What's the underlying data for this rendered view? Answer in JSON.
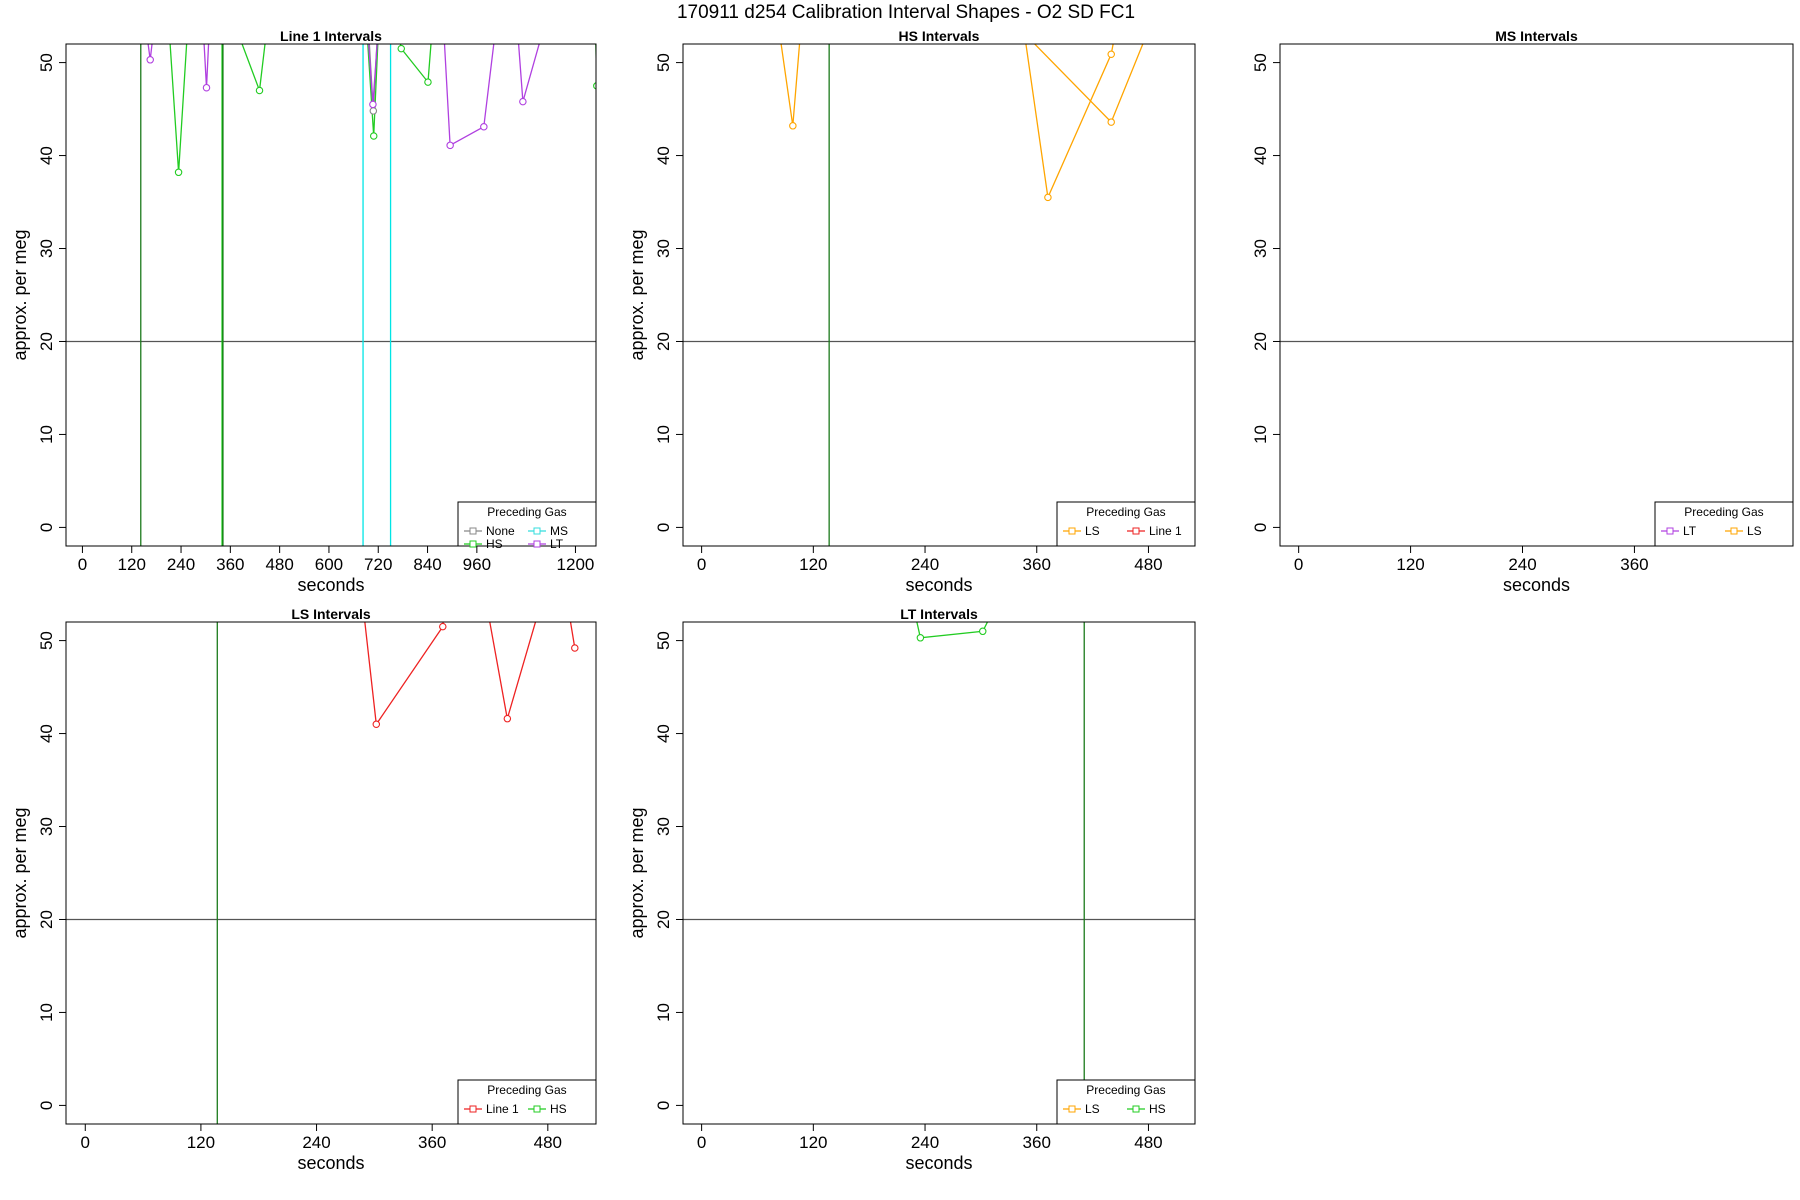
{
  "title": "170911    d254   Calibration Interval Shapes - O2 SD FC1",
  "chart_data": [
    {
      "type": "line",
      "title": "Line 1 Intervals",
      "xlabel": "seconds",
      "ylabel": "approx. per meg",
      "xlim": [
        -40,
        1250
      ],
      "ylim": [
        -2,
        52
      ],
      "xticks": [
        0,
        120,
        240,
        360,
        480,
        600,
        720,
        840,
        960,
        1200
      ],
      "yticks": [
        0,
        10,
        20,
        30,
        40,
        50
      ],
      "hlines": [
        {
          "y": 20,
          "color": "#555555"
        }
      ],
      "vlines": [
        {
          "x": 142,
          "color": "#1b7a1b"
        },
        {
          "x": 340,
          "color": "#00cc00"
        },
        {
          "x": 342,
          "color": "#1b7a1b"
        },
        {
          "x": 683,
          "color": "#00e5e5"
        },
        {
          "x": 750,
          "color": "#00e5e5"
        }
      ],
      "legend": {
        "title": "Preceding Gas",
        "position": "bottom-right",
        "columns": 2,
        "entries": [
          {
            "label": "None",
            "color": "#888888"
          },
          {
            "label": "MS",
            "color": "#33dddd"
          },
          {
            "label": "HS",
            "color": "#22cc22"
          },
          {
            "label": "LT",
            "color": "#b040e0"
          }
        ]
      },
      "series": [
        {
          "name": "LT",
          "color": "#b040e0",
          "points": [
            [
              157,
              53
            ],
            [
              165,
              50.3
            ],
            [
              172,
              53
            ]
          ]
        },
        {
          "name": "LT",
          "color": "#b040e0",
          "points": [
            [
              295,
              53
            ],
            [
              302,
              47.3
            ],
            [
              308,
              53
            ]
          ]
        },
        {
          "name": "HS",
          "color": "#22cc22",
          "points": [
            [
              212,
              53
            ],
            [
              234,
              38.2
            ],
            [
              255,
              53
            ]
          ]
        },
        {
          "name": "HS",
          "color": "#22cc22",
          "points": [
            [
              380,
              53
            ],
            [
              431,
              47
            ],
            [
              447,
              53
            ]
          ]
        },
        {
          "name": "HS",
          "color": "#22cc22",
          "points": [
            [
              693,
              53
            ],
            [
              709,
              42.1
            ],
            [
              720,
              53
            ]
          ]
        },
        {
          "name": "None",
          "color": "#888888",
          "points": [
            [
              697,
              53
            ],
            [
              708,
              44.8
            ],
            [
              718,
              53
            ]
          ]
        },
        {
          "name": "LT",
          "color": "#b040e0",
          "points": [
            [
              695,
              53
            ],
            [
              707,
              45.5
            ],
            [
              719,
              53
            ]
          ]
        },
        {
          "name": "HS",
          "color": "#22cc22",
          "points": [
            [
              770,
              53
            ],
            [
              776,
              51.5
            ],
            [
              841,
              47.9
            ],
            [
              850,
              53
            ]
          ]
        },
        {
          "name": "LT",
          "color": "#b040e0",
          "points": [
            [
              880,
              53
            ],
            [
              895,
              41.1
            ],
            [
              977,
              43.1
            ],
            [
              1004,
              53
            ]
          ]
        },
        {
          "name": "LT",
          "color": "#b040e0",
          "points": [
            [
              1060,
              53
            ],
            [
              1072,
              45.8
            ],
            [
              1118,
              53
            ]
          ]
        },
        {
          "name": "HS",
          "color": "#22cc22",
          "points": [
            [
              1249,
              53
            ],
            [
              1252,
              47.5
            ]
          ]
        }
      ]
    },
    {
      "type": "line",
      "title": "HS Intervals",
      "xlabel": "seconds",
      "ylabel": "approx. per meg",
      "xlim": [
        -20,
        530
      ],
      "ylim": [
        -2,
        52
      ],
      "xticks": [
        0,
        120,
        240,
        360,
        480
      ],
      "yticks": [
        0,
        10,
        20,
        30,
        40,
        50
      ],
      "hlines": [
        {
          "y": 20,
          "color": "#555555"
        }
      ],
      "vlines": [
        {
          "x": 137,
          "color": "#1b7a1b"
        }
      ],
      "legend": {
        "title": "Preceding Gas",
        "position": "bottom-right",
        "columns": 2,
        "entries": [
          {
            "label": "LS",
            "color": "#ffa500"
          },
          {
            "label": "Line 1",
            "color": "#ee2222"
          }
        ]
      },
      "series": [
        {
          "name": "LS",
          "color": "#ffa500",
          "points": [
            [
              84,
              53
            ],
            [
              98,
              43.2
            ],
            [
              106,
              53
            ]
          ]
        },
        {
          "name": "LS",
          "color": "#ffa500",
          "points": [
            [
              347,
              53
            ],
            [
              372,
              35.5
            ],
            [
              440,
              50.9
            ],
            [
              444,
              53
            ]
          ]
        },
        {
          "name": "LS",
          "color": "#ffa500",
          "points": [
            [
              348,
              53
            ],
            [
              440,
              43.6
            ],
            [
              478,
              53
            ]
          ]
        }
      ]
    },
    {
      "type": "line",
      "title": "MS Intervals",
      "xlabel": "seconds",
      "ylabel": "",
      "xlim": [
        -20,
        530
      ],
      "ylim": [
        -2,
        52
      ],
      "xticks": [
        0,
        120,
        240,
        360
      ],
      "yticks": [
        0,
        10,
        20,
        30,
        40,
        50
      ],
      "hlines": [
        {
          "y": 20,
          "color": "#555555"
        }
      ],
      "vlines": [],
      "legend": {
        "title": "Preceding Gas",
        "position": "bottom-right",
        "columns": 2,
        "entries": [
          {
            "label": "LT",
            "color": "#b040e0"
          },
          {
            "label": "LS",
            "color": "#ffa500"
          }
        ]
      },
      "series": []
    },
    {
      "type": "line",
      "title": "LS Intervals",
      "xlabel": "seconds",
      "ylabel": "approx. per meg",
      "xlim": [
        -20,
        530
      ],
      "ylim": [
        -2,
        52
      ],
      "xticks": [
        0,
        120,
        240,
        360,
        480
      ],
      "yticks": [
        0,
        10,
        20,
        30,
        40,
        50
      ],
      "hlines": [
        {
          "y": 20,
          "color": "#555555"
        }
      ],
      "vlines": [
        {
          "x": 137,
          "color": "#1b7a1b"
        }
      ],
      "legend": {
        "title": "Preceding Gas",
        "position": "bottom-right",
        "columns": 2,
        "entries": [
          {
            "label": "Line 1",
            "color": "#ee2222"
          },
          {
            "label": "HS",
            "color": "#22cc22"
          }
        ]
      },
      "series": [
        {
          "name": "Line 1",
          "color": "#ee2222",
          "points": [
            [
              289,
              53
            ],
            [
              302,
              41
            ],
            [
              371,
              51.5
            ],
            [
              372,
              53
            ]
          ]
        },
        {
          "name": "Line 1",
          "color": "#ee2222",
          "points": [
            [
              418,
              53
            ],
            [
              438,
              41.6
            ],
            [
              470,
              53
            ]
          ]
        },
        {
          "name": "Line 1",
          "color": "#ee2222",
          "points": [
            [
              502,
              53
            ],
            [
              508,
              49.2
            ]
          ]
        }
      ]
    },
    {
      "type": "line",
      "title": "LT Intervals",
      "xlabel": "seconds",
      "ylabel": "approx. per meg",
      "xlim": [
        -20,
        530
      ],
      "ylim": [
        -2,
        52
      ],
      "xticks": [
        0,
        120,
        240,
        360,
        480
      ],
      "yticks": [
        0,
        10,
        20,
        30,
        40,
        50
      ],
      "hlines": [
        {
          "y": 20,
          "color": "#555555"
        }
      ],
      "vlines": [
        {
          "x": 411,
          "color": "#1b7a1b"
        }
      ],
      "legend": {
        "title": "Preceding Gas",
        "position": "bottom-right",
        "columns": 2,
        "entries": [
          {
            "label": "LS",
            "color": "#ffa500"
          },
          {
            "label": "HS",
            "color": "#22cc22"
          }
        ]
      },
      "series": [
        {
          "name": "HS",
          "color": "#22cc22",
          "points": [
            [
              229,
              53
            ],
            [
              235,
              50.3
            ],
            [
              302,
              51
            ],
            [
              312,
              53
            ]
          ]
        }
      ]
    }
  ]
}
